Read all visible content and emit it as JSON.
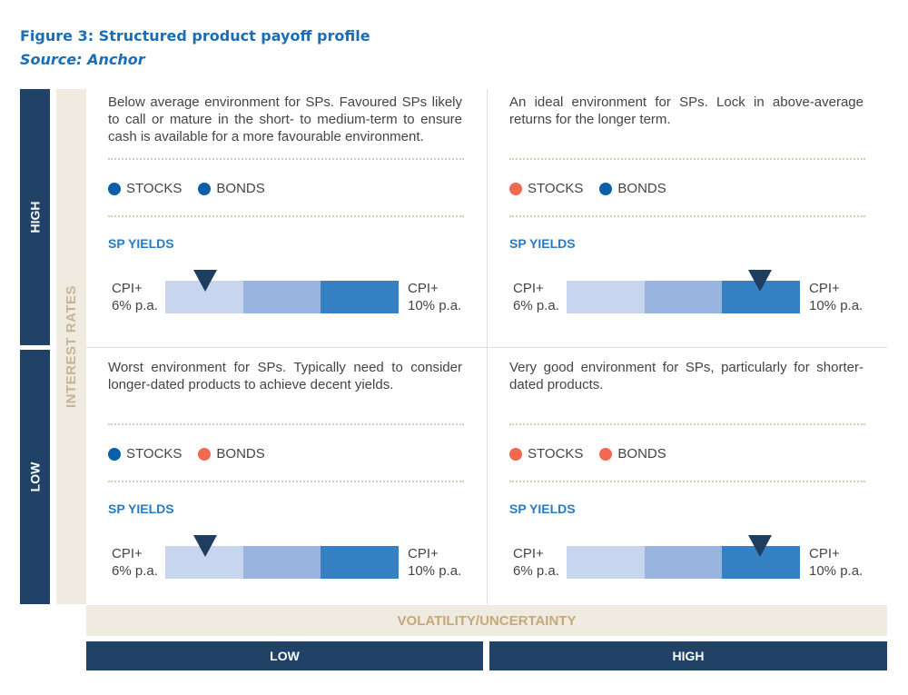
{
  "title": "Figure 3: Structured product payoff profile",
  "source": "Source: Anchor",
  "y_axis": {
    "label": "INTEREST RATES",
    "high": "HIGH",
    "low": "LOW"
  },
  "x_axis": {
    "label": "VOLATILITY/UNCERTAINTY",
    "low": "LOW",
    "high": "HIGH"
  },
  "colors": {
    "blue": "#0b5ea8",
    "orange": "#ef6a50",
    "navy": "#1f4266",
    "beige": "#f0ebe0",
    "seg1": "#c8d5ee",
    "seg2": "#99b4de",
    "seg3": "#3680c4"
  },
  "quadrants": [
    {
      "desc": "Below average environment for SPs. Favoured SPs likely to call or mature in the short- to medium-term to ensure cash is available for a more favourable environment.",
      "stocks": "STOCKS",
      "stocks_color": "blue",
      "bonds": "BONDS",
      "bonds_color": "blue",
      "yields": "SP YIELDS",
      "left": "CPI+\n6% p.a.",
      "right": "CPI+\n10% p.a.",
      "marker_position": 0.17
    },
    {
      "desc": "An ideal environment for SPs. Lock in above-average returns for the longer term.",
      "stocks": "STOCKS",
      "stocks_color": "orange",
      "bonds": "BONDS",
      "bonds_color": "blue",
      "yields": "SP YIELDS",
      "left": "CPI+\n6% p.a.",
      "right": "CPI+\n10% p.a.",
      "marker_position": 0.83
    },
    {
      "desc": "Worst environment for SPs. Typically need to consider longer-dated products to achieve decent yields.",
      "stocks": "STOCKS",
      "stocks_color": "blue",
      "bonds": "BONDS",
      "bonds_color": "orange",
      "yields": "SP YIELDS",
      "left": "CPI+\n6% p.a.",
      "right": "CPI+\n10% p.a.",
      "marker_position": 0.17
    },
    {
      "desc": "Very good environment for SPs, particularly for shorter-dated products.",
      "stocks": "STOCKS",
      "stocks_color": "orange",
      "bonds": "BONDS",
      "bonds_color": "orange",
      "yields": "SP YIELDS",
      "left": "CPI+\n6% p.a.",
      "right": "CPI+\n10% p.a.",
      "marker_position": 0.83
    }
  ]
}
